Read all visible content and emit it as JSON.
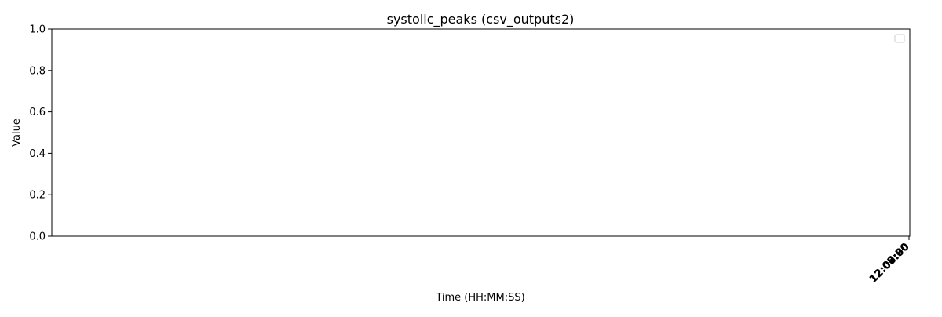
{
  "chart_data": {
    "type": "line",
    "title": "systolic_peaks (csv_outputs2)",
    "xlabel": "Time (HH:MM:SS)",
    "ylabel": "Value",
    "ylim": [
      0,
      1
    ],
    "y_ticks": [
      "0.0",
      "0.2",
      "0.4",
      "0.6",
      "0.8",
      "1.0"
    ],
    "y_tick_values": [
      0.0,
      0.2,
      0.4,
      0.6,
      0.8,
      1.0
    ],
    "x_ticks_overlapping": [
      "12:00:00",
      "12:02:00",
      "12:05:00",
      "12:08:00",
      "12:08:30",
      "12:09:00"
    ],
    "series": [],
    "grid": false,
    "legend": {
      "placement": "upper right",
      "entries": []
    }
  }
}
